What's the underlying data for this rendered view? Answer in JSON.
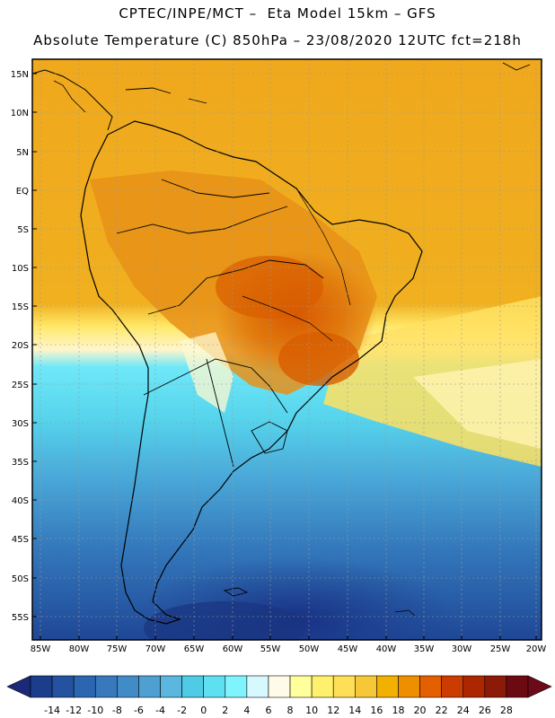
{
  "title": {
    "line1": "CPTEC/INPE/MCT –  Eta Model 15km – GFS",
    "line2": "Absolute Temperature (C) 850hPa – 23/08/2020 12UTC fct=218h"
  },
  "map": {
    "lat_labels": [
      "15N",
      "10N",
      "5N",
      "EQ",
      "5S",
      "10S",
      "15S",
      "20S",
      "25S",
      "30S",
      "35S",
      "40S",
      "45S",
      "50S",
      "55S"
    ],
    "lon_labels": [
      "85W",
      "80W",
      "75W",
      "70W",
      "65W",
      "60W",
      "55W",
      "50W",
      "45W",
      "40W",
      "35W",
      "30W",
      "25W",
      "20W"
    ]
  },
  "colorbar": {
    "labels": [
      "-14",
      "-12",
      "-10",
      "-8",
      "-6",
      "-4",
      "-2",
      "0",
      "2",
      "4",
      "6",
      "8",
      "10",
      "12",
      "14",
      "16",
      "18",
      "20",
      "22",
      "24",
      "26",
      "28"
    ],
    "colors": [
      "#1c3d8c",
      "#2452a0",
      "#2c66b0",
      "#3779bc",
      "#418cc6",
      "#4ea0d2",
      "#5bb6e0",
      "#4fcbe6",
      "#5fe0f0",
      "#7ff4ff",
      "#d6f8ff",
      "#fffbe8",
      "#ffff9c",
      "#fff06e",
      "#ffdf56",
      "#f6c838",
      "#f2b000",
      "#ee8f00",
      "#e45f00",
      "#cc3c00",
      "#ac2600",
      "#8c1a08",
      "#6c0a12"
    ],
    "under_color": "#1a2a78",
    "over_color": "#6c0a1a"
  },
  "colors": {
    "warm": "#efa41c",
    "hot": "#e0780c",
    "hottest": "#d85c00",
    "cool": "#4fcbe6",
    "cold": "#3779bc",
    "coldest": "#1c3d8c"
  }
}
